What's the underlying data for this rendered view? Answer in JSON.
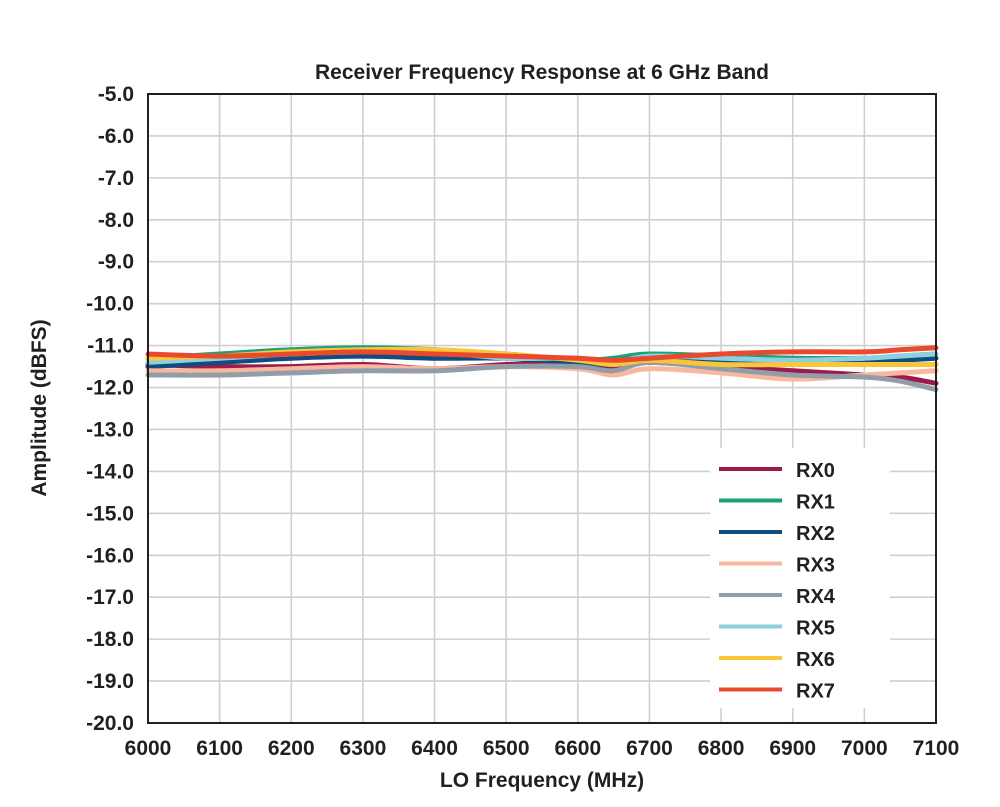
{
  "chart_data": {
    "type": "line",
    "title": "Receiver Frequency Response at 6 GHz Band",
    "xlabel": "LO Frequency (MHz)",
    "ylabel": "Amplitude (dBFS)",
    "xlim": [
      6000,
      7100
    ],
    "ylim": [
      -20.0,
      -5.0
    ],
    "x_ticks": [
      "6000",
      "6100",
      "6200",
      "6300",
      "6400",
      "6500",
      "6600",
      "6700",
      "6800",
      "6900",
      "7000",
      "7100"
    ],
    "y_ticks": [
      "-5.0",
      "-6.0",
      "-7.0",
      "-8.0",
      "-9.0",
      "-10.0",
      "-11.0",
      "-12.0",
      "-13.0",
      "-14.0",
      "-15.0",
      "-16.0",
      "-17.0",
      "-18.0",
      "-19.0",
      "-20.0"
    ],
    "grid": true,
    "legend_position": "bottom-right",
    "x": [
      6000,
      6100,
      6200,
      6300,
      6400,
      6500,
      6600,
      6650,
      6700,
      6800,
      6900,
      7000,
      7050,
      7100
    ],
    "series": [
      {
        "name": "RX0",
        "color": "#9b1b4a",
        "values": [
          -11.45,
          -11.5,
          -11.5,
          -11.45,
          -11.55,
          -11.45,
          -11.4,
          -11.5,
          -11.4,
          -11.5,
          -11.6,
          -11.7,
          -11.75,
          -11.9
        ]
      },
      {
        "name": "RX1",
        "color": "#1aa37a",
        "values": [
          -11.3,
          -11.2,
          -11.1,
          -11.05,
          -11.1,
          -11.2,
          -11.35,
          -11.3,
          -11.2,
          -11.25,
          -11.3,
          -11.3,
          -11.25,
          -11.2
        ]
      },
      {
        "name": "RX2",
        "color": "#104d7e",
        "values": [
          -11.5,
          -11.4,
          -11.3,
          -11.25,
          -11.3,
          -11.3,
          -11.4,
          -11.45,
          -11.3,
          -11.4,
          -11.45,
          -11.4,
          -11.35,
          -11.3
        ]
      },
      {
        "name": "RX3",
        "color": "#f9b7a0",
        "values": [
          -11.6,
          -11.6,
          -11.55,
          -11.5,
          -11.55,
          -11.5,
          -11.55,
          -11.7,
          -11.55,
          -11.65,
          -11.8,
          -11.7,
          -11.65,
          -11.6
        ]
      },
      {
        "name": "RX4",
        "color": "#919da8",
        "values": [
          -11.7,
          -11.7,
          -11.65,
          -11.6,
          -11.6,
          -11.5,
          -11.5,
          -11.6,
          -11.4,
          -11.55,
          -11.7,
          -11.75,
          -11.85,
          -12.05
        ]
      },
      {
        "name": "RX5",
        "color": "#8ecfe0",
        "values": [
          -11.4,
          -11.3,
          -11.2,
          -11.15,
          -11.15,
          -11.3,
          -11.3,
          -11.4,
          -11.25,
          -11.3,
          -11.35,
          -11.3,
          -11.25,
          -11.2
        ]
      },
      {
        "name": "RX6",
        "color": "#f7c63a",
        "values": [
          -11.3,
          -11.25,
          -11.15,
          -11.1,
          -11.1,
          -11.2,
          -11.35,
          -11.45,
          -11.35,
          -11.45,
          -11.45,
          -11.45,
          -11.45,
          -11.45
        ]
      },
      {
        "name": "RX7",
        "color": "#e94a2e",
        "values": [
          -11.2,
          -11.25,
          -11.2,
          -11.15,
          -11.2,
          -11.25,
          -11.3,
          -11.35,
          -11.3,
          -11.2,
          -11.15,
          -11.15,
          -11.1,
          -11.05
        ]
      }
    ]
  }
}
